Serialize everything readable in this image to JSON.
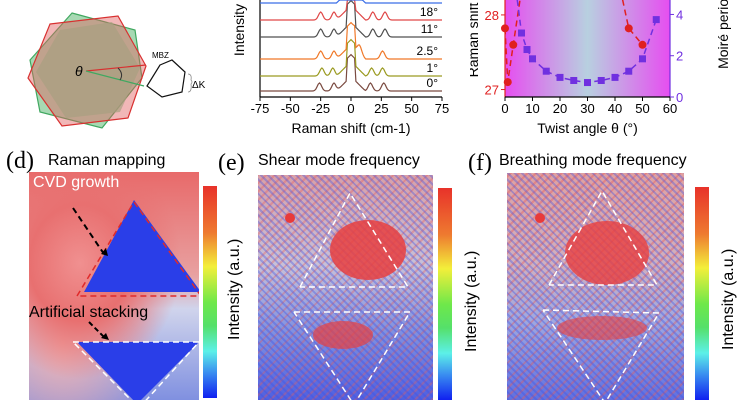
{
  "panel_a": {
    "theta_label": "θ",
    "mbz_label": "MBZ",
    "dk_label": "ΔK",
    "colors": {
      "red_lattice": "#e05050",
      "green_lattice": "#40a860",
      "overlap": "#b0a888"
    }
  },
  "chart_data": [
    {
      "type": "line",
      "title": "",
      "xlabel": "Raman shift (cm-1)",
      "ylabel": "Intensity",
      "xlim": [
        -75,
        75
      ],
      "xticks": [
        "-75",
        "-50",
        "-25",
        "0",
        "25",
        "50",
        "75"
      ],
      "series": [
        {
          "name": "0°",
          "color": "#7a4a40",
          "peaks": [
            -26,
            -14,
            16,
            27
          ]
        },
        {
          "name": "1°",
          "color": "#9a9a20",
          "peaks": [
            -24,
            -15,
            17,
            26
          ]
        },
        {
          "name": "2.5°",
          "color": "#f07828",
          "peaks": [
            -25,
            -14,
            7,
            26
          ]
        },
        {
          "name": "11°",
          "color": "#505050",
          "peaks": [
            -25,
            -14,
            18,
            28
          ]
        },
        {
          "name": "18°",
          "color": "#e04848",
          "peaks": [
            -25,
            -14,
            18,
            28
          ]
        },
        {
          "name": "",
          "color": "#3a6ee8",
          "peaks": []
        }
      ]
    },
    {
      "type": "scatter",
      "xlabel": "Twist angle θ (°)",
      "ylabel_left": "Raman shift",
      "ylabel_right": "Moiré period",
      "xlim": [
        0,
        60
      ],
      "xticks": [
        "0",
        "10",
        "20",
        "30",
        "40",
        "50",
        "60"
      ],
      "y_left_ticks": [
        "27",
        "28"
      ],
      "y_left_lim": [
        26.9,
        28.2
      ],
      "y_right_ticks": [
        "0",
        "2",
        "4"
      ],
      "y_right_lim": [
        0,
        4.7
      ],
      "series": [
        {
          "name": "Raman shift",
          "axis": "left",
          "color": "#e02020",
          "x": [
            0,
            1,
            3,
            45,
            50
          ],
          "y": [
            27.82,
            27.1,
            27.6,
            27.82,
            27.6
          ]
        },
        {
          "name": "Moiré period",
          "axis": "right",
          "color": "#7030e0",
          "x": [
            6,
            8,
            10,
            15,
            20,
            25,
            30,
            35,
            40,
            45,
            50,
            55
          ],
          "y": [
            3.1,
            2.3,
            1.85,
            1.25,
            0.95,
            0.8,
            0.7,
            0.8,
            0.95,
            1.25,
            1.85,
            3.75
          ]
        }
      ]
    }
  ],
  "panel_d": {
    "letter": "(d)",
    "title": "Raman  mapping",
    "label_top": "CVD growth",
    "label_bottom": "Artificial stacking",
    "colorbar_label": "Intensity (a.u.)"
  },
  "panel_e": {
    "letter": "(e)",
    "title": "Shear mode frequency",
    "colorbar_label": "Intensity (a.u.)"
  },
  "panel_f": {
    "letter": "(f)",
    "title": "Breathing mode frequency",
    "colorbar_label": "Intensity (a.u.)"
  }
}
